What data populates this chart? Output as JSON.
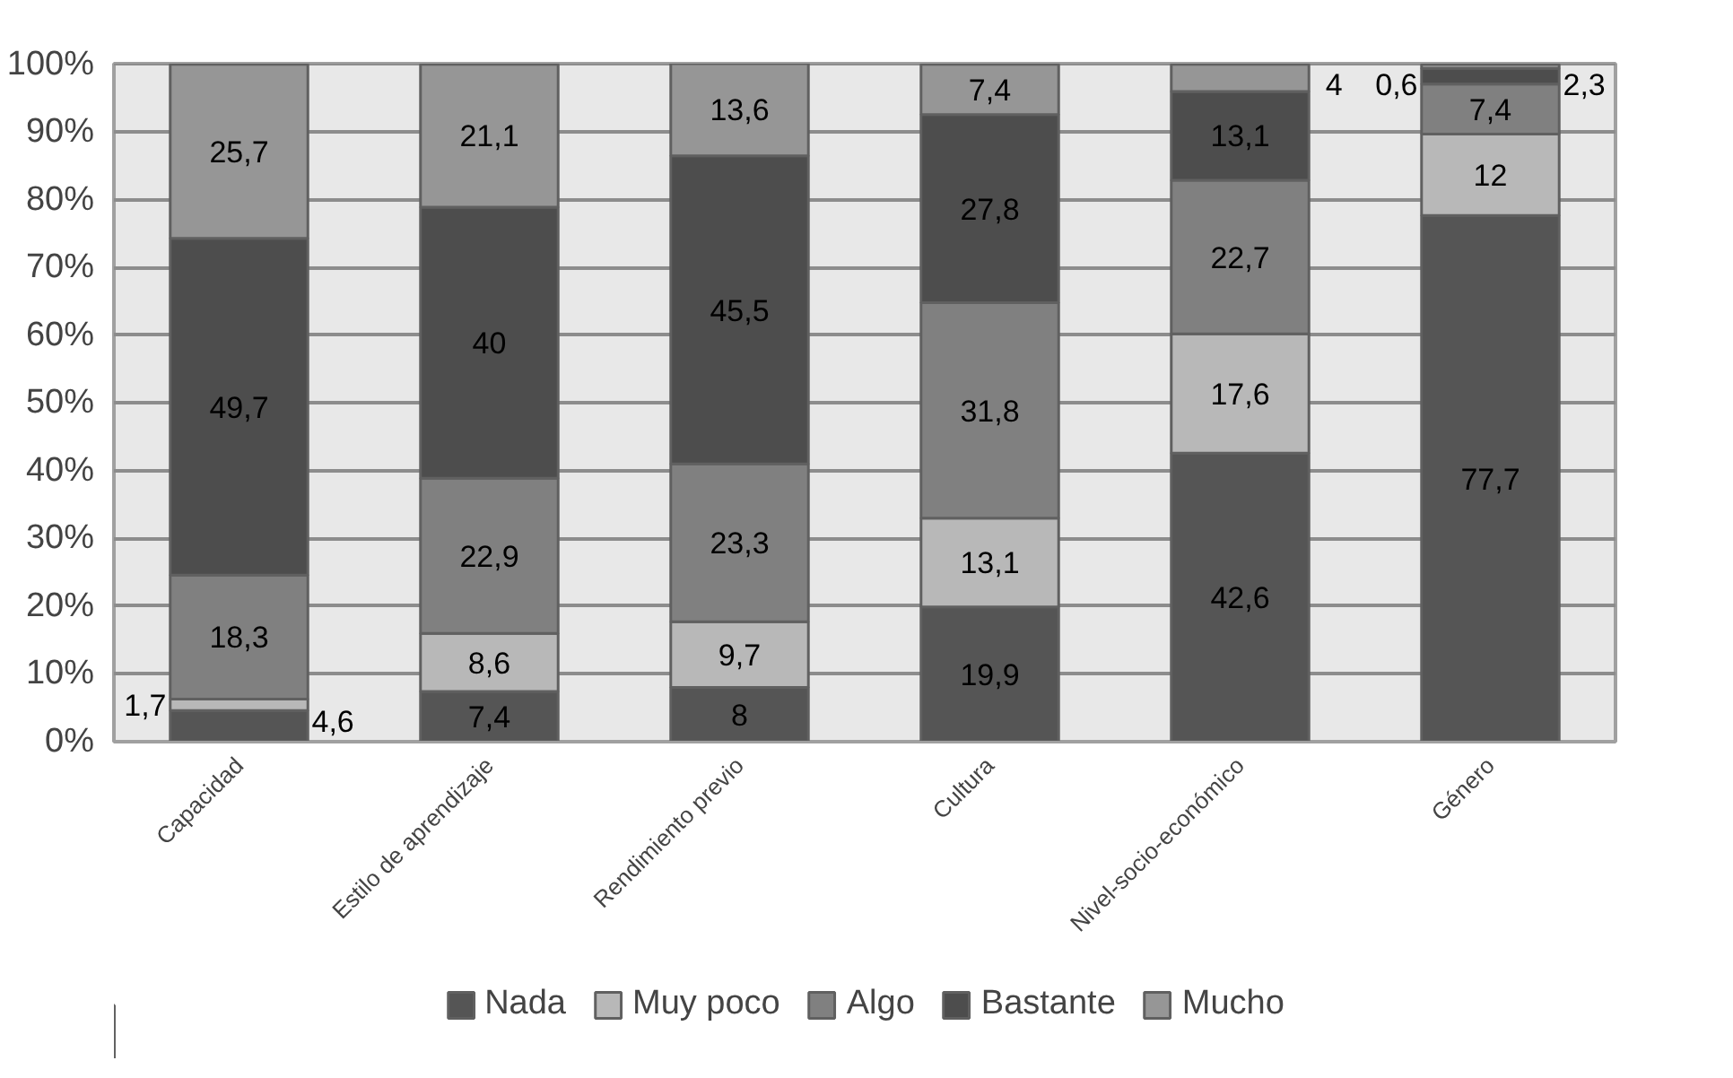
{
  "chart_data": {
    "type": "bar",
    "stacked": true,
    "categories": [
      "Capacidad",
      "Estilo de aprendizaje",
      "Rendimiento previo",
      "Cultura",
      "Nivel-socio-económico",
      "Género"
    ],
    "series": [
      {
        "name": "Nada",
        "color": "#555555",
        "values": [
          4.6,
          7.4,
          8,
          19.9,
          42.6,
          77.7
        ],
        "value_labels": [
          "4,6",
          "7,4",
          "8",
          "19,9",
          "42,6",
          "77,7"
        ]
      },
      {
        "name": "Muy poco",
        "color": "#b8b8b8",
        "values": [
          1.7,
          8.6,
          9.7,
          13.1,
          17.6,
          12
        ],
        "value_labels": [
          "1,7",
          "8,6",
          "9,7",
          "13,1",
          "17,6",
          "12"
        ]
      },
      {
        "name": "Algo",
        "color": "#808080",
        "values": [
          18.3,
          22.9,
          23.3,
          31.8,
          22.7,
          7.4
        ],
        "value_labels": [
          "18,3",
          "22,9",
          "23,3",
          "31,8",
          "22,7",
          "7,4"
        ]
      },
      {
        "name": "Bastante",
        "color": "#4d4d4d",
        "values": [
          49.7,
          40,
          45.5,
          27.8,
          13.1,
          2.3
        ],
        "value_labels": [
          "49,7",
          "40",
          "45,5",
          "27,8",
          "13,1",
          "2,3"
        ]
      },
      {
        "name": "Mucho",
        "color": "#969696",
        "values": [
          25.7,
          21.1,
          13.6,
          7.4,
          4,
          0.6
        ],
        "value_labels": [
          "25,7",
          "21,1",
          "13,6",
          "7,4",
          "4",
          "0,6"
        ]
      }
    ],
    "ylim": [
      0,
      100.1
    ],
    "yticks": [
      {
        "value": 0,
        "label": "0%"
      },
      {
        "value": 10,
        "label": "10%"
      },
      {
        "value": 20,
        "label": "20%"
      },
      {
        "value": 30,
        "label": "30%"
      },
      {
        "value": 40,
        "label": "40%"
      },
      {
        "value": 50,
        "label": "50%"
      },
      {
        "value": 60,
        "label": "60%"
      },
      {
        "value": 70,
        "label": "70%"
      },
      {
        "value": 80,
        "label": "80%"
      },
      {
        "value": 90,
        "label": "90%"
      },
      {
        "value": 100,
        "label": "100%"
      }
    ],
    "grid": "y",
    "legend": "bottom"
  }
}
